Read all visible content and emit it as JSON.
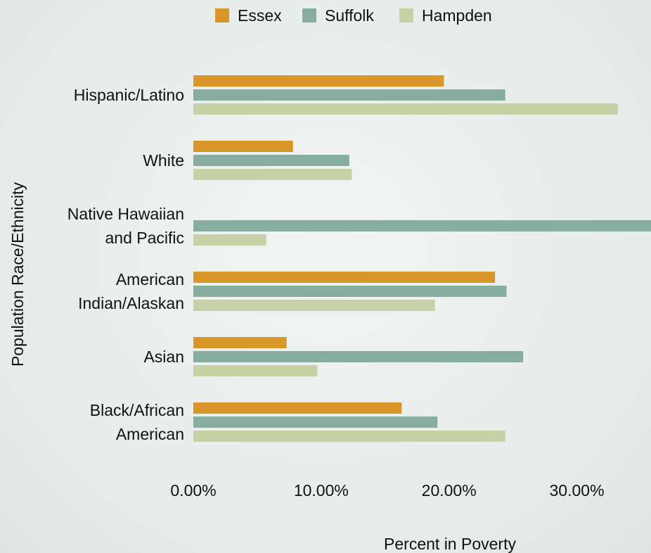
{
  "chart_data": {
    "type": "bar",
    "orientation": "horizontal",
    "x_label": "Percent in Poverty",
    "y_label": "Population Race/Ethnicity",
    "categories": [
      "Hispanic/Latino",
      "White",
      "Native Hawaiian\nand Pacific",
      "American\nIndian/Alaskan",
      "Asian",
      "Black/African\nAmerican"
    ],
    "series": [
      {
        "name": "Essex",
        "color": "#d9972a",
        "values": [
          19.6,
          7.8,
          null,
          23.6,
          7.3,
          16.3
        ]
      },
      {
        "name": "Suffolk",
        "color": "#87ada0",
        "values": [
          24.4,
          12.2,
          36,
          24.5,
          25.8,
          19.1
        ]
      },
      {
        "name": "Hampden",
        "color": "#c8d0a5",
        "values": [
          33.2,
          12.4,
          5.7,
          18.9,
          9.7,
          24.4
        ]
      }
    ],
    "xlim": [
      0,
      35.8
    ],
    "xticks": [
      {
        "value": 0,
        "label": "0.00%"
      },
      {
        "value": 10,
        "label": "10.00%"
      },
      {
        "value": 20,
        "label": "20.00%"
      },
      {
        "value": 30,
        "label": "30.00%"
      }
    ],
    "legend": "top",
    "grid": false
  }
}
